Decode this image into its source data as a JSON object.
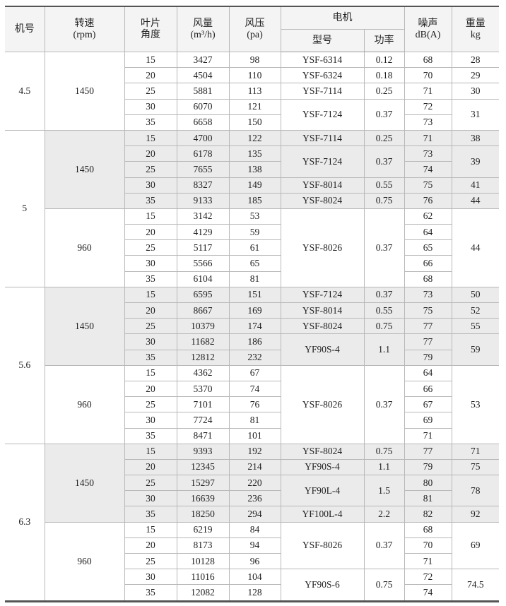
{
  "headers": {
    "fan_no": "机号",
    "speed": "转速",
    "speed_unit": "(rpm)",
    "blade": "叶片",
    "blade2": "角度",
    "flow": "风量",
    "flow_unit": "(m³/h)",
    "pressure": "风压",
    "pressure_unit": "(pa)",
    "motor": "电机",
    "model": "型号",
    "power": "功率",
    "noise": "噪声",
    "noise_unit": "dB(A)",
    "weight": "重量",
    "weight_unit": "kg"
  },
  "shade_color": "#ebebeb",
  "fans": [
    {
      "no": "4.5",
      "speeds": [
        {
          "rpm": "1450",
          "shaded": false,
          "rows": [
            [
              "15",
              "3427",
              "98",
              "YSF-6314",
              "0.12",
              "68",
              "28"
            ],
            [
              "20",
              "4504",
              "110",
              "YSF-6324",
              "0.18",
              "70",
              "29"
            ],
            [
              "25",
              "5881",
              "113",
              "YSF-7114",
              "0.25",
              "71",
              "30"
            ],
            [
              "30",
              "6070",
              "121",
              "YSF-7124",
              "0.37",
              "72",
              "31"
            ],
            [
              "35",
              "6658",
              "150",
              "YSF-7124",
              "0.37",
              "73",
              "31"
            ]
          ]
        }
      ]
    },
    {
      "no": "5",
      "speeds": [
        {
          "rpm": "1450",
          "shaded": true,
          "rows": [
            [
              "15",
              "4700",
              "122",
              "YSF-7114",
              "0.25",
              "71",
              "38"
            ],
            [
              "20",
              "6178",
              "135",
              "YSF-7124",
              "0.37",
              "73",
              "39"
            ],
            [
              "25",
              "7655",
              "138",
              "YSF-7124",
              "0.37",
              "74",
              "39"
            ],
            [
              "30",
              "8327",
              "149",
              "YSF-8014",
              "0.55",
              "75",
              "41"
            ],
            [
              "35",
              "9133",
              "185",
              "YSF-8024",
              "0.75",
              "76",
              "44"
            ]
          ]
        },
        {
          "rpm": "960",
          "shaded": false,
          "rows": [
            [
              "15",
              "3142",
              "53",
              "YSF-8026",
              "0.37",
              "62",
              "44"
            ],
            [
              "20",
              "4129",
              "59",
              "YSF-8026",
              "0.37",
              "64",
              "44"
            ],
            [
              "25",
              "5117",
              "61",
              "YSF-8026",
              "0.37",
              "65",
              "44"
            ],
            [
              "30",
              "5566",
              "65",
              "YSF-8026",
              "0.37",
              "66",
              "44"
            ],
            [
              "35",
              "6104",
              "81",
              "YSF-8026",
              "0.37",
              "68",
              "44"
            ]
          ]
        }
      ]
    },
    {
      "no": "5.6",
      "speeds": [
        {
          "rpm": "1450",
          "shaded": true,
          "rows": [
            [
              "15",
              "6595",
              "151",
              "YSF-7124",
              "0.37",
              "73",
              "50"
            ],
            [
              "20",
              "8667",
              "169",
              "YSF-8014",
              "0.55",
              "75",
              "52"
            ],
            [
              "25",
              "10379",
              "174",
              "YSF-8024",
              "0.75",
              "77",
              "55"
            ],
            [
              "30",
              "11682",
              "186",
              "YF90S-4",
              "1.1",
              "77",
              "59"
            ],
            [
              "35",
              "12812",
              "232",
              "YF90S-4",
              "1.1",
              "79",
              "59"
            ]
          ]
        },
        {
          "rpm": "960",
          "shaded": false,
          "rows": [
            [
              "15",
              "4362",
              "67",
              "YSF-8026",
              "0.37",
              "64",
              "53"
            ],
            [
              "20",
              "5370",
              "74",
              "YSF-8026",
              "0.37",
              "66",
              "53"
            ],
            [
              "25",
              "7101",
              "76",
              "YSF-8026",
              "0.37",
              "67",
              "53"
            ],
            [
              "30",
              "7724",
              "81",
              "YSF-8026",
              "0.37",
              "69",
              "53"
            ],
            [
              "35",
              "8471",
              "101",
              "YSF-8026",
              "0.37",
              "71",
              "53"
            ]
          ]
        }
      ]
    },
    {
      "no": "6.3",
      "speeds": [
        {
          "rpm": "1450",
          "shaded": true,
          "rows": [
            [
              "15",
              "9393",
              "192",
              "YSF-8024",
              "0.75",
              "77",
              "71"
            ],
            [
              "20",
              "12345",
              "214",
              "YF90S-4",
              "1.1",
              "79",
              "75"
            ],
            [
              "25",
              "15297",
              "220",
              "YF90L-4",
              "1.5",
              "80",
              "78"
            ],
            [
              "30",
              "16639",
              "236",
              "YF90L-4",
              "1.5",
              "81",
              "78"
            ],
            [
              "35",
              "18250",
              "294",
              "YF100L-4",
              "2.2",
              "82",
              "92"
            ]
          ]
        },
        {
          "rpm": "960",
          "shaded": false,
          "rows": [
            [
              "15",
              "6219",
              "84",
              "YSF-8026",
              "0.37",
              "68",
              "69"
            ],
            [
              "20",
              "8173",
              "94",
              "YSF-8026",
              "0.37",
              "70",
              "69"
            ],
            [
              "25",
              "10128",
              "96",
              "YSF-8026",
              "0.37",
              "71",
              "69"
            ],
            [
              "30",
              "11016",
              "104",
              "YF90S-6",
              "0.75",
              "72",
              "74.5"
            ],
            [
              "35",
              "12082",
              "128",
              "YF90S-6",
              "0.75",
              "74",
              "74.5"
            ]
          ]
        }
      ]
    }
  ]
}
